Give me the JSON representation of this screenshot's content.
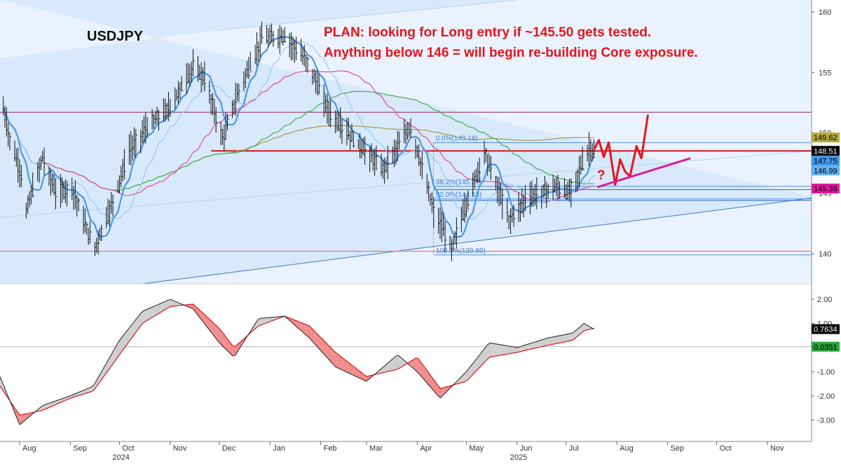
{
  "chart_data": [
    {
      "type": "candlestick",
      "symbol": "USDJPY",
      "annotation": [
        "PLAN: looking for Long entry if ~145.50 gets tested.",
        "Anything below 146 = will begin re-building Core exposure."
      ],
      "question_mark": "?",
      "ylim": [
        137.5,
        161
      ],
      "y_ticks": [
        140,
        145,
        150,
        155,
        160
      ],
      "x_range": [
        "2024-07-20",
        "2025-11-28"
      ],
      "month_ticks": [
        {
          "date": "2024-08-01",
          "label": "Aug"
        },
        {
          "date": "2024-09-01",
          "label": "Sep"
        },
        {
          "date": "2024-10-01",
          "label": "Oct"
        },
        {
          "date": "2024-11-01",
          "label": "Nov"
        },
        {
          "date": "2024-12-01",
          "label": "Dec"
        },
        {
          "date": "2025-01-01",
          "label": "Jan"
        },
        {
          "date": "2025-02-01",
          "label": "Feb"
        },
        {
          "date": "2025-03-01",
          "label": "Mar"
        },
        {
          "date": "2025-04-01",
          "label": "Apr"
        },
        {
          "date": "2025-05-01",
          "label": "May"
        },
        {
          "date": "2025-06-01",
          "label": "Jun"
        },
        {
          "date": "2025-07-01",
          "label": "Jul"
        },
        {
          "date": "2025-08-01",
          "label": "Aug"
        },
        {
          "date": "2025-09-01",
          "label": "Sep"
        },
        {
          "date": "2025-10-01",
          "label": "Oct"
        },
        {
          "date": "2025-11-01",
          "label": "Nov"
        }
      ],
      "year_labels": [
        {
          "date": "2024-10-01",
          "label": "2024"
        },
        {
          "date": "2025-06-01",
          "label": "2025"
        }
      ],
      "price_path": [
        {
          "date": "2024-07-22",
          "value": 152.0
        },
        {
          "date": "2024-07-26",
          "value": 149.5
        },
        {
          "date": "2024-08-02",
          "value": 146.5
        },
        {
          "date": "2024-08-05",
          "value": 143.5
        },
        {
          "date": "2024-08-15",
          "value": 148.0
        },
        {
          "date": "2024-08-23",
          "value": 145.0
        },
        {
          "date": "2024-09-02",
          "value": 145.5
        },
        {
          "date": "2024-09-11",
          "value": 142.0
        },
        {
          "date": "2024-09-16",
          "value": 140.5
        },
        {
          "date": "2024-09-26",
          "value": 144.0
        },
        {
          "date": "2024-10-07",
          "value": 148.5
        },
        {
          "date": "2024-10-18",
          "value": 150.5
        },
        {
          "date": "2024-10-31",
          "value": 152.0
        },
        {
          "date": "2024-11-15",
          "value": 155.5
        },
        {
          "date": "2024-11-22",
          "value": 154.5
        },
        {
          "date": "2024-12-03",
          "value": 149.5
        },
        {
          "date": "2024-12-13",
          "value": 153.5
        },
        {
          "date": "2024-12-27",
          "value": 157.8
        },
        {
          "date": "2025-01-10",
          "value": 158.0
        },
        {
          "date": "2025-01-24",
          "value": 155.8
        },
        {
          "date": "2025-02-07",
          "value": 151.5
        },
        {
          "date": "2025-02-21",
          "value": 149.5
        },
        {
          "date": "2025-03-11",
          "value": 147.0
        },
        {
          "date": "2025-03-28",
          "value": 150.5
        },
        {
          "date": "2025-04-11",
          "value": 143.5
        },
        {
          "date": "2025-04-22",
          "value": 140.5
        },
        {
          "date": "2025-05-12",
          "value": 148.5
        },
        {
          "date": "2025-05-27",
          "value": 142.8
        },
        {
          "date": "2025-06-06",
          "value": 144.5
        },
        {
          "date": "2025-06-24",
          "value": 145.5
        },
        {
          "date": "2025-07-03",
          "value": 145.0
        },
        {
          "date": "2025-07-11",
          "value": 147.5
        },
        {
          "date": "2025-07-15",
          "value": 148.7
        },
        {
          "date": "2025-07-18",
          "value": 148.5
        }
      ],
      "levels": [
        {
          "value": 151.7,
          "color": "#a04c78",
          "from": "2024-07-20"
        },
        {
          "value": 148.5,
          "color": "#d41218",
          "from": "2024-11-26"
        },
        {
          "value": 145.3,
          "color": "#2a8c7a",
          "from": "2025-04-11"
        },
        {
          "value": 144.4,
          "color": "#3a78c8",
          "from": "2025-04-11"
        },
        {
          "value": 140.2,
          "color": "#e67a82",
          "from": "2024-07-20"
        }
      ],
      "fib_levels": [
        {
          "label": "0.0%(149.18)",
          "value": 149.18
        },
        {
          "label": "38.2%(145.57)",
          "value": 145.57
        },
        {
          "label": "50.0%(144.53)",
          "value": 144.53
        },
        {
          "label": "100.0%(139.89)",
          "value": 139.89
        }
      ],
      "fib_from": "2025-04-11",
      "channel_lower": [
        {
          "date": "2024-10-15",
          "value": 137.5
        },
        {
          "date": "2025-11-28",
          "value": 144.6
        }
      ],
      "channel_upper": [
        {
          "date": "2024-12-01",
          "value": 158.5
        },
        {
          "date": "2025-06-01",
          "value": 161
        }
      ],
      "channel_mid": [
        {
          "date": "2024-07-20",
          "value": 143.0
        },
        {
          "date": "2025-11-28",
          "value": 148.5
        }
      ],
      "projection_path": [
        {
          "date": "2025-07-18",
          "value": 148.6
        },
        {
          "date": "2025-07-21",
          "value": 149.4
        },
        {
          "date": "2025-07-24",
          "value": 148.0
        },
        {
          "date": "2025-07-27",
          "value": 149.2
        },
        {
          "date": "2025-07-31",
          "value": 145.7
        },
        {
          "date": "2025-08-03",
          "value": 147.8
        },
        {
          "date": "2025-08-06",
          "value": 146.8
        },
        {
          "date": "2025-08-09",
          "value": 146.4
        },
        {
          "date": "2025-08-13",
          "value": 148.9
        },
        {
          "date": "2025-08-16",
          "value": 147.9
        },
        {
          "date": "2025-08-20",
          "value": 151.5
        }
      ],
      "projection_trendline": [
        {
          "date": "2025-07-20",
          "value": 145.5
        },
        {
          "date": "2025-09-15",
          "value": 147.9
        }
      ],
      "price_tags": [
        {
          "value": "149.62",
          "bg": "#b5a93a",
          "fg": "#000000",
          "y": 149.62
        },
        {
          "value": "148.51",
          "bg": "#000000",
          "fg": "#ffffff",
          "y": 148.51
        },
        {
          "value": "147.75",
          "bg": "#3f95e6",
          "fg": "#000000",
          "y": 147.75
        },
        {
          "value": "146.99",
          "bg": "#5fb0f0",
          "fg": "#000000",
          "y": 146.99
        },
        {
          "value": "145.39",
          "bg": "#e0189a",
          "fg": "#000000",
          "y": 145.39
        }
      ],
      "colors": {
        "ma_fast": "#4a98e4",
        "ma_slow": "#9cc8f2",
        "ma_50": "#e44aa0",
        "ma_100": "#48ab52",
        "ma_200": "#a39a44",
        "channel_fill": "#d7e9fb",
        "bars": "#111111",
        "projection": "#e8141c",
        "projection_trendline": "#e0189a"
      }
    },
    {
      "type": "line",
      "name": "oscillator",
      "ylim": [
        -3.6,
        2.35
      ],
      "y_ticks": [
        2,
        1,
        0,
        -1,
        -2,
        -3
      ],
      "y_tick_labels": [
        "2.00",
        "1.00",
        "0.00",
        "-1.00",
        "-2.00",
        "-3.00"
      ],
      "zero_line": 0.0351,
      "price_tags": [
        {
          "value": "0.7634",
          "bg": "#000000",
          "fg": "#ffffff",
          "y": 0.7634
        },
        {
          "value": "0.0351",
          "bg": "#2aa33c",
          "fg": "#000000",
          "y": 0.0351
        }
      ],
      "fast_path": [
        {
          "date": "2024-07-20",
          "value": -1.2
        },
        {
          "date": "2024-08-01",
          "value": -3.2
        },
        {
          "date": "2024-08-15",
          "value": -2.4
        },
        {
          "date": "2024-09-01",
          "value": -2.0
        },
        {
          "date": "2024-09-15",
          "value": -1.6
        },
        {
          "date": "2024-10-01",
          "value": 0.3
        },
        {
          "date": "2024-10-15",
          "value": 1.5
        },
        {
          "date": "2024-11-01",
          "value": 2.0
        },
        {
          "date": "2024-11-15",
          "value": 1.6
        },
        {
          "date": "2024-12-01",
          "value": 0.2
        },
        {
          "date": "2024-12-10",
          "value": -0.4
        },
        {
          "date": "2024-12-25",
          "value": 1.2
        },
        {
          "date": "2025-01-10",
          "value": 1.3
        },
        {
          "date": "2025-01-25",
          "value": 0.4
        },
        {
          "date": "2025-02-10",
          "value": -0.8
        },
        {
          "date": "2025-03-01",
          "value": -1.4
        },
        {
          "date": "2025-03-20",
          "value": -0.3
        },
        {
          "date": "2025-04-01",
          "value": -1.0
        },
        {
          "date": "2025-04-15",
          "value": -2.1
        },
        {
          "date": "2025-05-01",
          "value": -1.0
        },
        {
          "date": "2025-05-15",
          "value": 0.2
        },
        {
          "date": "2025-06-01",
          "value": 0.0
        },
        {
          "date": "2025-06-20",
          "value": 0.4
        },
        {
          "date": "2025-07-05",
          "value": 0.6
        },
        {
          "date": "2025-07-12",
          "value": 1.0
        },
        {
          "date": "2025-07-18",
          "value": 0.76
        }
      ],
      "slow_path": [
        {
          "date": "2024-07-20",
          "value": -1.6
        },
        {
          "date": "2024-08-01",
          "value": -2.8
        },
        {
          "date": "2024-08-15",
          "value": -2.6
        },
        {
          "date": "2024-09-01",
          "value": -2.1
        },
        {
          "date": "2024-09-15",
          "value": -1.8
        },
        {
          "date": "2024-10-01",
          "value": -0.3
        },
        {
          "date": "2024-10-15",
          "value": 1.0
        },
        {
          "date": "2024-11-01",
          "value": 1.7
        },
        {
          "date": "2024-11-15",
          "value": 1.8
        },
        {
          "date": "2024-12-01",
          "value": 0.8
        },
        {
          "date": "2024-12-10",
          "value": 0.0
        },
        {
          "date": "2024-12-25",
          "value": 0.9
        },
        {
          "date": "2025-01-10",
          "value": 1.3
        },
        {
          "date": "2025-01-25",
          "value": 0.9
        },
        {
          "date": "2025-02-10",
          "value": -0.2
        },
        {
          "date": "2025-03-01",
          "value": -1.2
        },
        {
          "date": "2025-03-20",
          "value": -0.9
        },
        {
          "date": "2025-04-01",
          "value": -0.4
        },
        {
          "date": "2025-04-15",
          "value": -1.7
        },
        {
          "date": "2025-05-01",
          "value": -1.4
        },
        {
          "date": "2025-05-15",
          "value": -0.4
        },
        {
          "date": "2025-06-01",
          "value": -0.2
        },
        {
          "date": "2025-06-20",
          "value": 0.1
        },
        {
          "date": "2025-07-05",
          "value": 0.3
        },
        {
          "date": "2025-07-12",
          "value": 0.7
        },
        {
          "date": "2025-07-18",
          "value": 0.8
        }
      ],
      "colors": {
        "fast": "#222222",
        "slow": "#e0161b",
        "fill_up": "#cfcfcf",
        "fill_down": "#f08c8c"
      }
    }
  ]
}
